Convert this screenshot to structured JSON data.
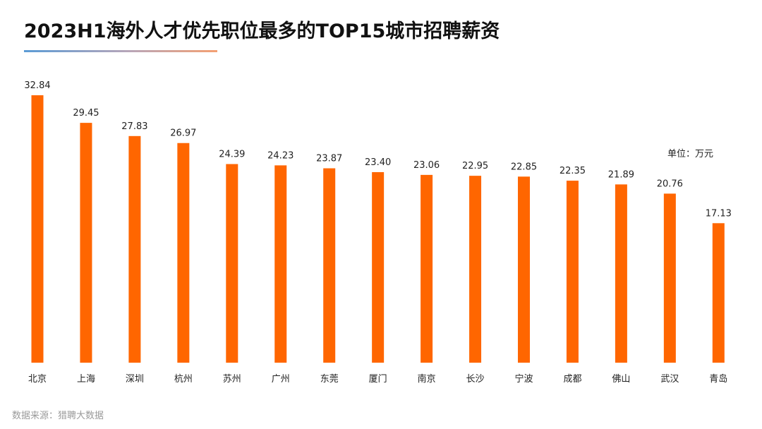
{
  "header": {
    "title": "2023H1海外人才优先职位最多的TOP15城市招聘薪资"
  },
  "unit_label": "单位：万元",
  "source_label": "数据来源：猎聘大数据",
  "colors": {
    "bar": "#ff6600",
    "underline_start": "#5b9bd5",
    "underline_end": "#f4a072"
  },
  "chart_data": {
    "type": "bar",
    "title": "2023H1海外人才优先职位最多的TOP15城市招聘薪资",
    "xlabel": "",
    "ylabel": "",
    "unit": "万元",
    "grid": false,
    "legend": "none",
    "ylim": [
      0,
      32.84
    ],
    "categories": [
      "北京",
      "上海",
      "深圳",
      "杭州",
      "苏州",
      "广州",
      "东莞",
      "厦门",
      "南京",
      "长沙",
      "宁波",
      "成都",
      "佛山",
      "武汉",
      "青岛"
    ],
    "values": [
      32.84,
      29.45,
      27.83,
      26.97,
      24.39,
      24.23,
      23.87,
      23.4,
      23.06,
      22.95,
      22.85,
      22.35,
      21.89,
      20.76,
      17.13
    ],
    "value_labels": [
      "32.84",
      "29.45",
      "27.83",
      "26.97",
      "24.39",
      "24.23",
      "23.87",
      "23.40",
      "23.06",
      "22.95",
      "22.85",
      "22.35",
      "21.89",
      "20.76",
      "17.13"
    ]
  }
}
